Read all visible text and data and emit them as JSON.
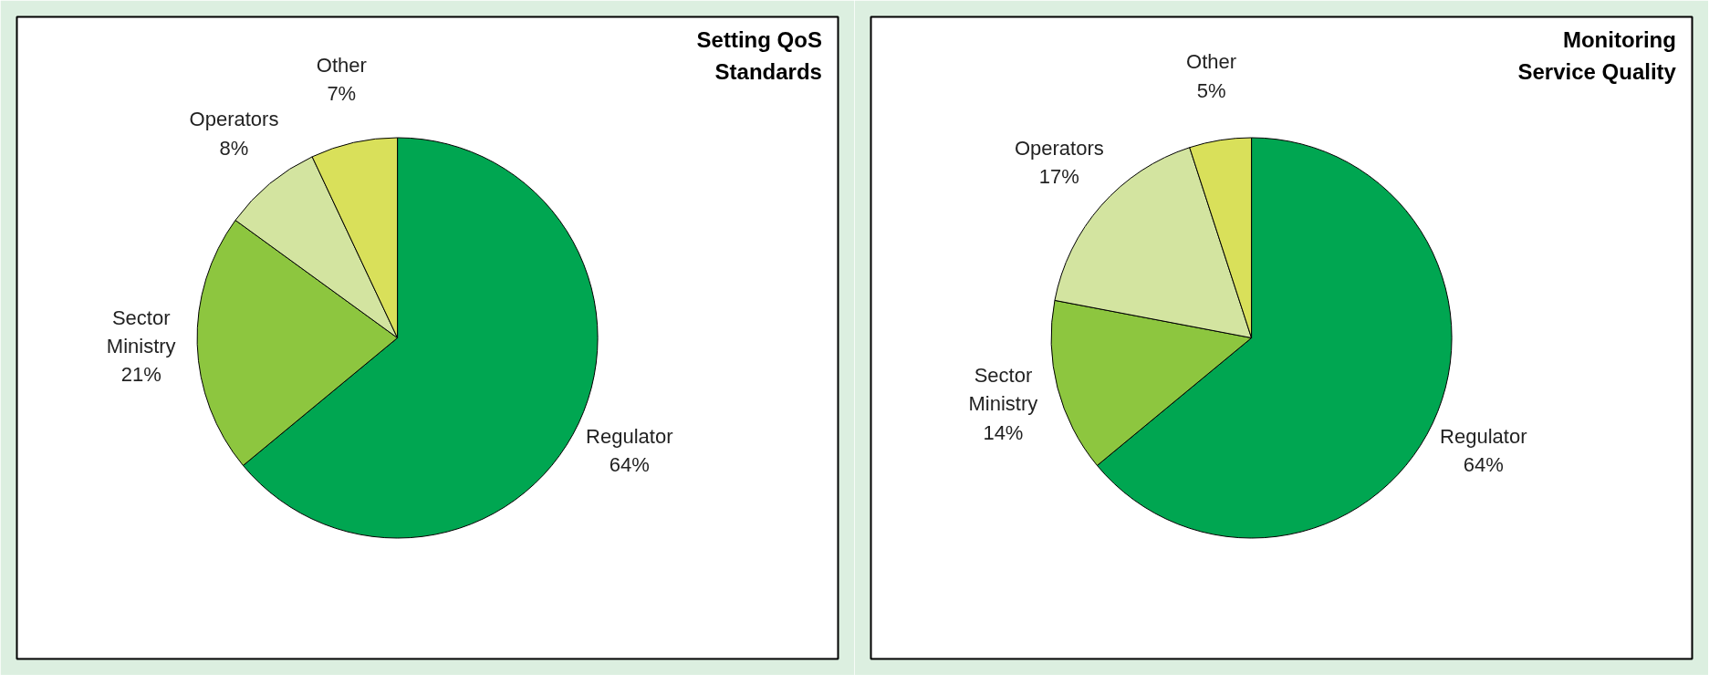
{
  "chart_data": [
    {
      "type": "pie",
      "title": "Setting QoS Standards",
      "categories": [
        "Regulator",
        "Sector Ministry",
        "Operators",
        "Other"
      ],
      "values": [
        64,
        21,
        8,
        7
      ],
      "colors": [
        "#00a651",
        "#8dc63f",
        "#d3e4a0",
        "#d9e05a"
      ],
      "value_labels": [
        "64%",
        "21%",
        "8%",
        "7%"
      ]
    },
    {
      "type": "pie",
      "title": "Monitoring Service Quality",
      "categories": [
        "Regulator",
        "Sector Ministry",
        "Operators",
        "Other"
      ],
      "values": [
        64,
        14,
        17,
        5
      ],
      "colors": [
        "#00a651",
        "#8dc63f",
        "#d3e4a0",
        "#d9e05a"
      ],
      "value_labels": [
        "64%",
        "14%",
        "17%",
        "5%"
      ]
    }
  ]
}
